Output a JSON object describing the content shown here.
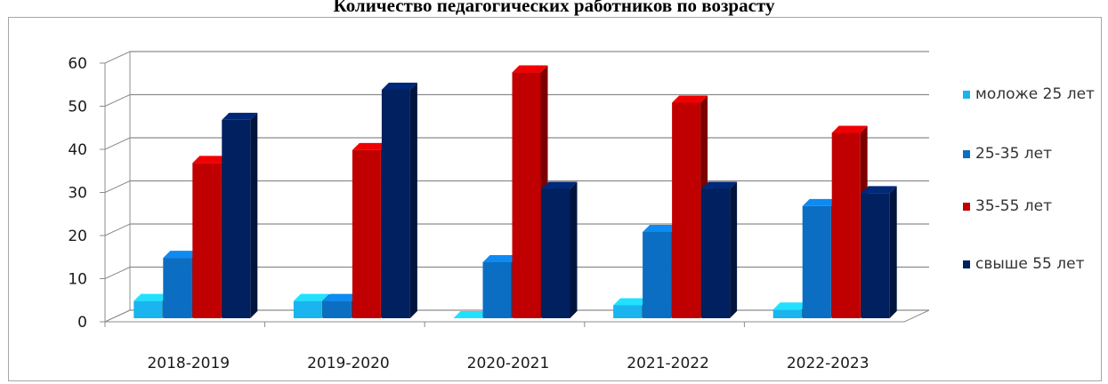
{
  "chart_data": {
    "type": "bar",
    "title": "Количество педагогических работников по возрасту",
    "categories": [
      "2018-2019",
      "2019-2020",
      "2020-2021",
      "2021-2022",
      "2022-2023"
    ],
    "series": [
      {
        "name": "моложе 25 лет",
        "color": "#1ab4ee",
        "values": [
          4,
          4,
          0,
          3,
          2
        ]
      },
      {
        "name": "25-35 лет",
        "color": "#0b6ec2",
        "values": [
          14,
          4,
          13,
          20,
          26
        ]
      },
      {
        "name": "35-55 лет",
        "color": "#c00000",
        "values": [
          36,
          39,
          57,
          50,
          43
        ]
      },
      {
        "name": "свыше 55 лет",
        "color": "#002060",
        "values": [
          46,
          53,
          30,
          30,
          29
        ]
      }
    ],
    "yticks": [
      "0",
      "10",
      "20",
      "30",
      "40",
      "50",
      "60"
    ],
    "ylim": [
      0,
      60
    ],
    "grid": true,
    "legend_position": "right"
  }
}
